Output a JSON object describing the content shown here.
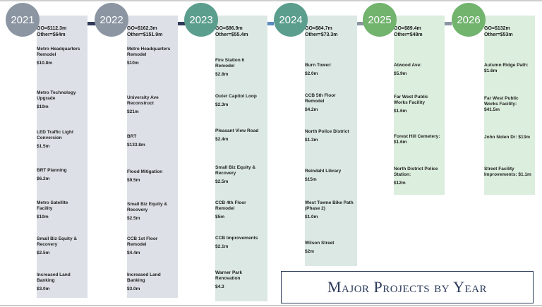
{
  "title": "Major Projects by Year",
  "colors": {
    "gray": "#8c96a3",
    "teal": "#5b9e8d",
    "green": "#72b36e",
    "navy": "#2f3a57",
    "blue": "#5b8bc0"
  },
  "years": [
    {
      "year": "2021",
      "summary_go": "GO=$112.3m",
      "summary_other": "Other=$64m",
      "projects": [
        {
          "name": "Metro Headquarters Remodel",
          "amount": "$10.8m"
        },
        {
          "name": "Metro Technology Upgrade",
          "amount": "$10m"
        },
        {
          "name": "LED Traffic Light Conversion",
          "amount": "$1.5m"
        },
        {
          "name": "BRT Planning",
          "amount": "$6.2m"
        },
        {
          "name": "Metro Satellite Facility",
          "amount": "$10m"
        },
        {
          "name": "Small Biz Equity & Recovery",
          "amount": "$2.5m"
        },
        {
          "name": "Increased Land Banking",
          "amount": "$3.0m"
        }
      ]
    },
    {
      "year": "2022",
      "summary_go": "GO=$162.3m",
      "summary_other": "Other=$151.9m",
      "projects": [
        {
          "name": "Metro Headquarters Remodel",
          "amount": "$10m"
        },
        {
          "name": "University Ave Reconstruct",
          "amount": "$21m"
        },
        {
          "name": "BRT",
          "amount": "$133.8m"
        },
        {
          "name": "Flood Mitigation",
          "amount": "$9.5m"
        },
        {
          "name": "Small Biz Equity & Recovery",
          "amount": "$2.5m"
        },
        {
          "name": "CCB 1st Floor Remodel",
          "amount": "$4.4m"
        },
        {
          "name": "Increased Land Banking",
          "amount": "$3.0m"
        }
      ]
    },
    {
      "year": "2023",
      "summary_go": "GO=$86.9m",
      "summary_other": "Other=$55.4m",
      "projects": [
        {
          "name": "Fire Station 6 Remodel",
          "amount": "$2.8m"
        },
        {
          "name": "Outer Capitol Loop",
          "amount": "$2.3m"
        },
        {
          "name": "Pleasant View Road",
          "amount": "$2.4m"
        },
        {
          "name": "Small Biz Equity & Recovery",
          "amount": "$2.5m"
        },
        {
          "name": "CCB 4th Floor Remodel",
          "amount": "$5m"
        },
        {
          "name": "CCB Improvements",
          "amount": "$2.1m"
        },
        {
          "name": "Warner Park Renovation",
          "amount": "$4.3"
        }
      ]
    },
    {
      "year": "2024",
      "summary_go": "GO=$84.7m",
      "summary_other": "Other=$73.3m",
      "projects": [
        {
          "name": "Burn Tower:",
          "amount": "$2.0m"
        },
        {
          "name": "CCB 5th Floor Remodel",
          "amount": "$4.2m"
        },
        {
          "name": "North Police District",
          "amount": "$1.3m"
        },
        {
          "name": "Reindahl Library",
          "amount": "$15m"
        },
        {
          "name": "West Towne Bike Path (Phase 2)",
          "amount": "$1.0m"
        },
        {
          "name": "Wilson Street",
          "amount": "$2m"
        }
      ]
    },
    {
      "year": "2025",
      "summary_go": "GO=$89.4m",
      "summary_other": "Other=$48m",
      "projects": [
        {
          "name": "Atwood Ave:",
          "amount": "$5.9m"
        },
        {
          "name": "Far West Public Works Facility",
          "amount": "$1.6m"
        },
        {
          "name": "Forest Hill Cemetery: $1.6m",
          "amount": ""
        },
        {
          "name": "North District Police Station:",
          "amount": "$12m"
        }
      ]
    },
    {
      "year": "2026",
      "summary_go": "GO=$132m",
      "summary_other": "Other=$53m",
      "projects": [
        {
          "name": "Autumn Ridge Path: $1.6m",
          "amount": ""
        },
        {
          "name": "Far West Public Works Facility: $41.5m",
          "amount": ""
        },
        {
          "name": "John Nolen Dr: $13m",
          "amount": ""
        },
        {
          "name": "Street Facility Improvements: $1.1m",
          "amount": ""
        }
      ]
    }
  ]
}
